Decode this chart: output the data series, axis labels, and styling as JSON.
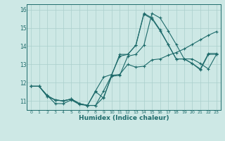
{
  "xlabel": "Humidex (Indice chaleur)",
  "xlim": [
    -0.5,
    23.5
  ],
  "ylim": [
    10.5,
    16.3
  ],
  "xticks": [
    0,
    1,
    2,
    3,
    4,
    5,
    6,
    7,
    8,
    9,
    10,
    11,
    12,
    13,
    14,
    15,
    16,
    17,
    18,
    19,
    20,
    21,
    22,
    23
  ],
  "yticks": [
    11,
    12,
    13,
    14,
    15,
    16
  ],
  "background_color": "#cde8e5",
  "grid_color": "#aacfcc",
  "line_color": "#1e6b6b",
  "lines": [
    [
      11.8,
      11.8,
      11.3,
      10.85,
      10.85,
      11.05,
      10.8,
      10.75,
      10.75,
      11.55,
      12.4,
      13.55,
      13.55,
      14.05,
      15.8,
      15.55,
      14.9,
      14.1,
      13.3,
      13.3,
      13.05,
      12.75,
      13.6,
      13.6
    ],
    [
      11.8,
      11.8,
      11.25,
      11.05,
      11.0,
      11.1,
      10.85,
      10.75,
      11.5,
      11.15,
      12.4,
      12.45,
      13.0,
      12.85,
      12.9,
      13.25,
      13.3,
      13.5,
      13.65,
      13.85,
      14.1,
      14.35,
      14.6,
      14.8
    ],
    [
      11.8,
      11.8,
      11.25,
      11.05,
      11.0,
      11.1,
      10.85,
      10.75,
      10.75,
      11.2,
      12.35,
      12.4,
      13.45,
      13.55,
      14.05,
      15.8,
      15.55,
      14.85,
      14.1,
      13.3,
      13.3,
      13.05,
      12.75,
      13.55
    ],
    [
      11.8,
      11.8,
      11.3,
      11.05,
      11.0,
      11.1,
      10.85,
      10.75,
      11.55,
      12.3,
      12.45,
      13.45,
      13.55,
      14.05,
      15.75,
      15.5,
      14.85,
      14.1,
      13.3,
      13.3,
      13.05,
      12.7,
      13.55,
      13.55
    ]
  ]
}
